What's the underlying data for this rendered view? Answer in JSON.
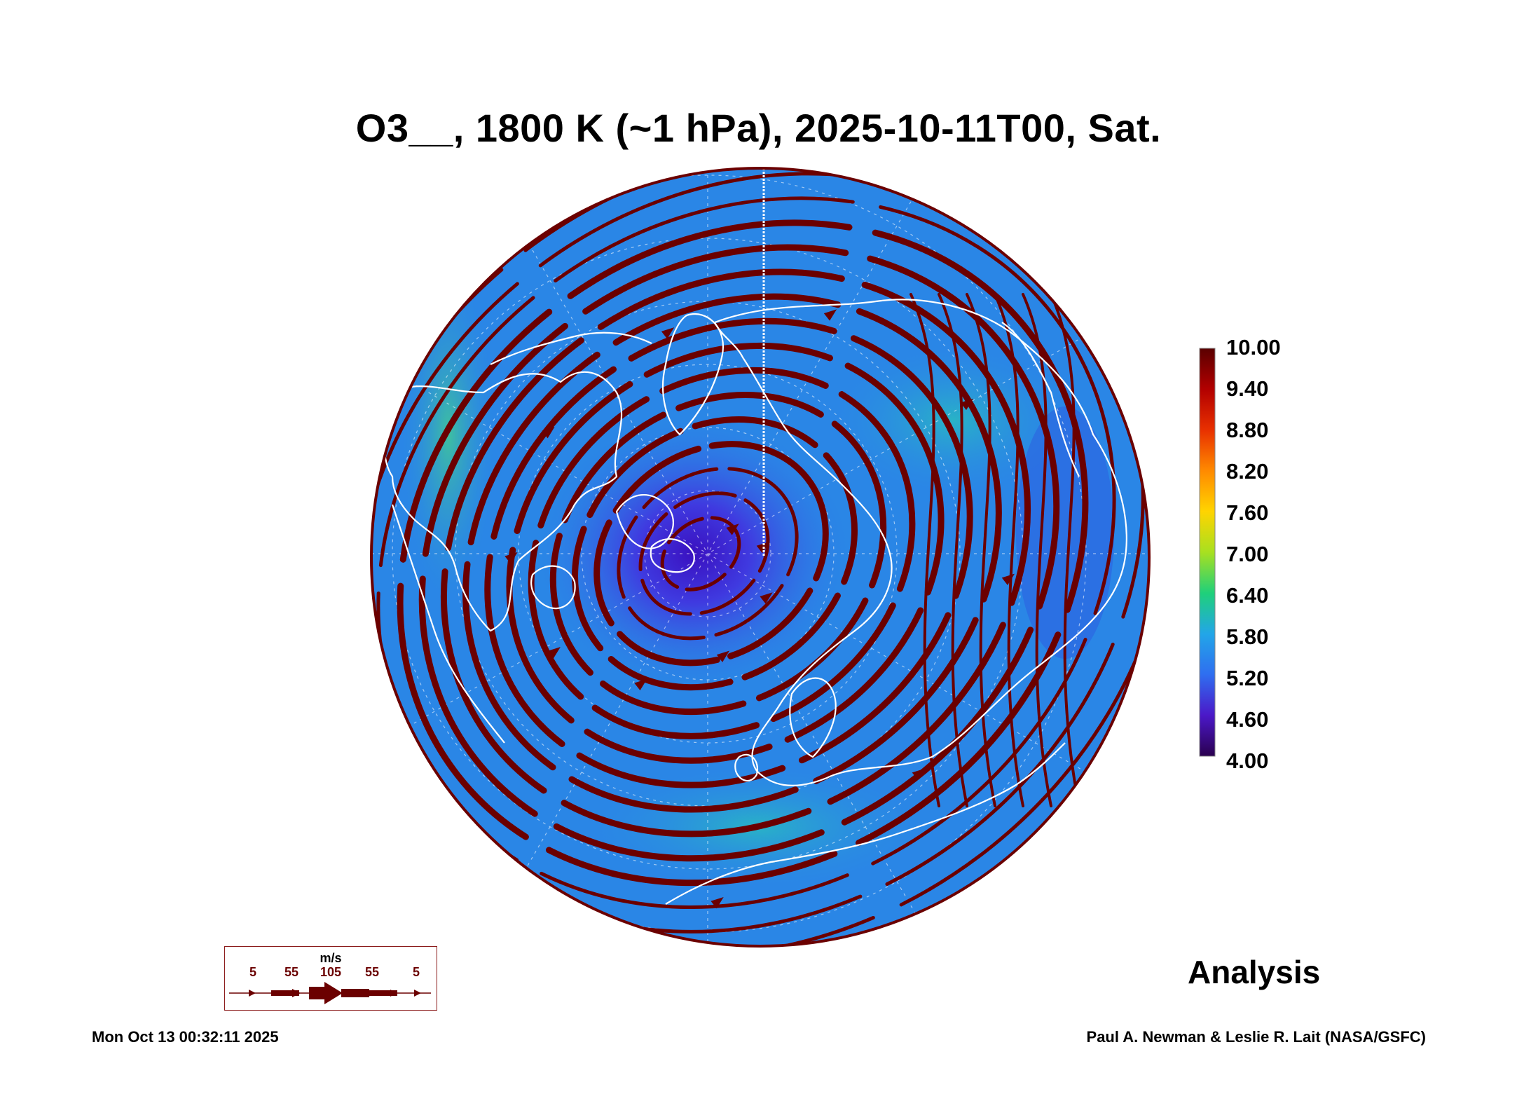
{
  "title": "O3__, 1800 K (~1 hPa), 2025-10-11T00, Sat.",
  "colorbar": {
    "ticks": [
      "10.00",
      "9.40",
      "8.80",
      "8.20",
      "7.60",
      "7.00",
      "6.40",
      "5.80",
      "5.20",
      "4.60",
      "4.00"
    ],
    "colors": [
      "#2a004f",
      "#4b18c8",
      "#2f6ef0",
      "#22a6e8",
      "#1fd07a",
      "#a8e020",
      "#ffd400",
      "#ff8a00",
      "#e83000",
      "#b20000",
      "#5a0000"
    ]
  },
  "map": {
    "field_color": "#2a86e6",
    "low_color": "#3b2fd8",
    "high_color": "#29a9c9",
    "streamline_color": "#6b0000",
    "coastline_color": "#ffffff",
    "projection": "north-polar-orthographic"
  },
  "wind_legend": {
    "units": "m/s",
    "values": [
      "5",
      "55",
      "105",
      "55",
      "5"
    ]
  },
  "label": "Analysis",
  "footer": {
    "timestamp": "Mon Oct 13 00:32:11 2025",
    "credit": "Paul A. Newman & Leslie R. Lait (NASA/GSFC)"
  }
}
